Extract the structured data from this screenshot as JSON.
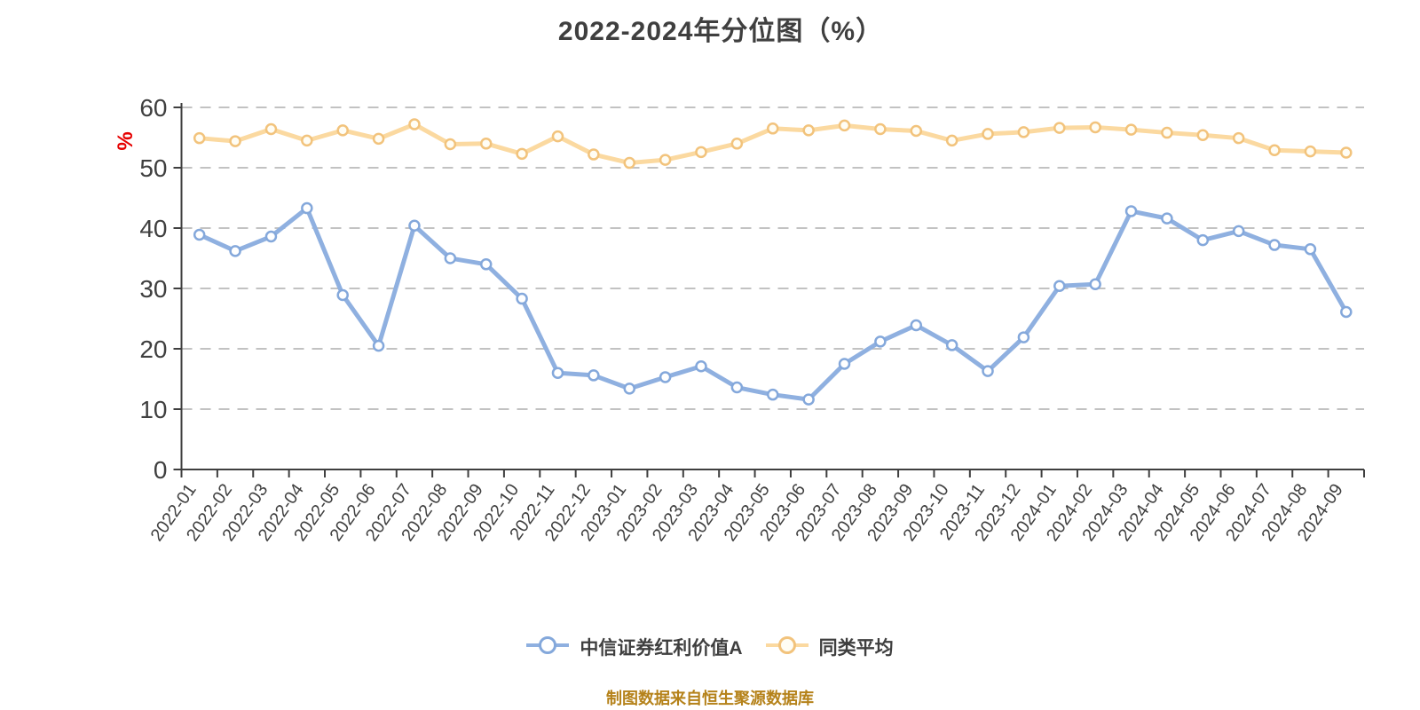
{
  "title": "2022-2024年分位图（%）",
  "caption": "制图数据来自恒生聚源数据库",
  "axis": {
    "y_unit_label": "%",
    "y_unit_color": "#e60000",
    "y_min": 0,
    "y_max": 60,
    "y_tick_step": 10,
    "text_color": "#3f3f3f",
    "gridline_color": "#c2c2c2",
    "gridline_style": "dashed"
  },
  "chart_data": {
    "type": "line",
    "title": "2022-2024年分位图（%）",
    "ylabel": "%",
    "ylabel_color": "#e60000",
    "ylim": [
      0,
      60
    ],
    "ytick_step": 10,
    "grid": "horizontal-dashed",
    "legend_position": "bottom",
    "categories": [
      "2022-01",
      "2022-02",
      "2022-03",
      "2022-04",
      "2022-05",
      "2022-06",
      "2022-07",
      "2022-08",
      "2022-09",
      "2022-10",
      "2022-11",
      "2022-12",
      "2023-01",
      "2023-02",
      "2023-03",
      "2023-04",
      "2023-05",
      "2023-06",
      "2023-07",
      "2023-08",
      "2023-09",
      "2023-10",
      "2023-11",
      "2023-12",
      "2024-01",
      "2024-02",
      "2024-03",
      "2024-04",
      "2024-05",
      "2024-06",
      "2024-07",
      "2024-08",
      "2024-09"
    ],
    "series": [
      {
        "name": "中信证券红利价值A",
        "color": "#8fb0e0",
        "marker_stroke": "#84a8db",
        "marker_fill": "#ffffff",
        "values": [
          38.9,
          36.2,
          38.6,
          43.3,
          28.9,
          20.5,
          40.4,
          35.0,
          34.0,
          28.3,
          16.0,
          15.6,
          13.4,
          15.3,
          17.1,
          13.6,
          12.4,
          11.6,
          17.5,
          21.2,
          23.9,
          20.6,
          16.3,
          21.9,
          30.4,
          30.7,
          42.8,
          41.6,
          38.0,
          39.5,
          37.2,
          36.5,
          26.1
        ]
      },
      {
        "name": "同类平均",
        "color": "#fbd9a0",
        "marker_stroke": "#f2c37c",
        "marker_fill": "#fffdf4",
        "values": [
          54.9,
          54.4,
          56.4,
          54.5,
          56.2,
          54.8,
          57.2,
          53.9,
          54.0,
          52.3,
          55.2,
          52.2,
          50.8,
          51.3,
          52.6,
          54.0,
          56.5,
          56.2,
          57.0,
          56.4,
          56.1,
          54.5,
          55.6,
          55.9,
          56.6,
          56.7,
          56.3,
          55.8,
          55.4,
          54.9,
          52.9,
          52.7,
          52.5
        ]
      }
    ]
  }
}
